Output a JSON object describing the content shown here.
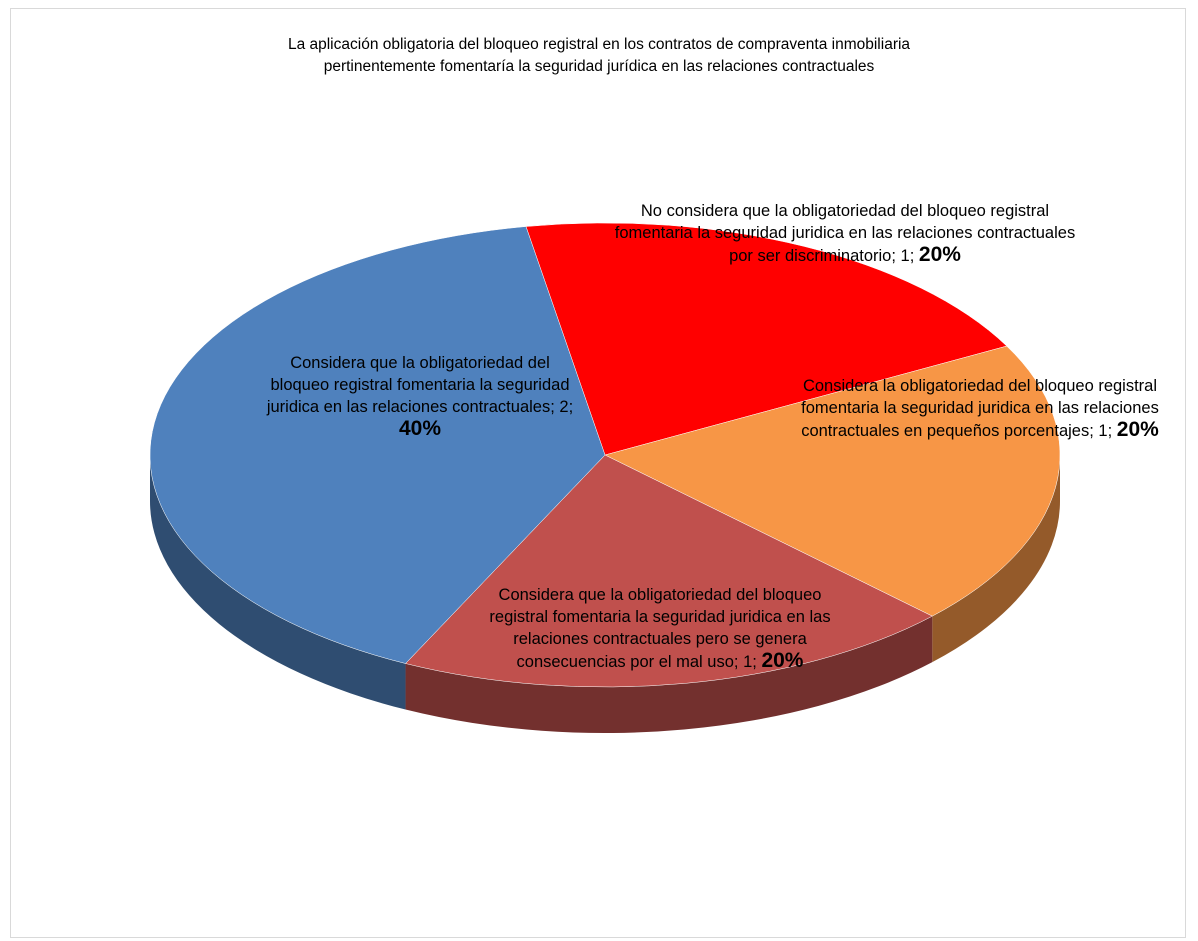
{
  "chart_data": {
    "type": "pie",
    "title": "La aplicación obligatoria del bloqueo registral en los contratos de compraventa inmobiliaria pertinentemente fomentaría la seguridad jurídica en las relaciones contractuales",
    "categories": [
      "No considera que la obligatoriedad del bloqueo registral fomentaria la seguridad juridica en las relaciones contractuales por ser discriminatorio",
      "Considera la obligatoriedad del bloqueo registral fomentaria la seguridad juridica en las relaciones contractuales en pequeños porcentajes",
      "Considera que la obligatoriedad del bloqueo registral fomentaria la seguridad juridica en las relaciones contractuales pero se genera consecuencias por el mal uso",
      "Considera que la obligatoriedad del bloqueo registral fomentaria la seguridad juridica en las relaciones contractuales"
    ],
    "values": [
      1,
      1,
      1,
      2
    ],
    "percentages": [
      20,
      20,
      20,
      40
    ],
    "percentage_labels": [
      "20%",
      "20%",
      "20%",
      "40%"
    ],
    "separator": "; ",
    "colors": [
      "#ff0000",
      "#f79646",
      "#c0504d",
      "#4f81bd"
    ]
  }
}
